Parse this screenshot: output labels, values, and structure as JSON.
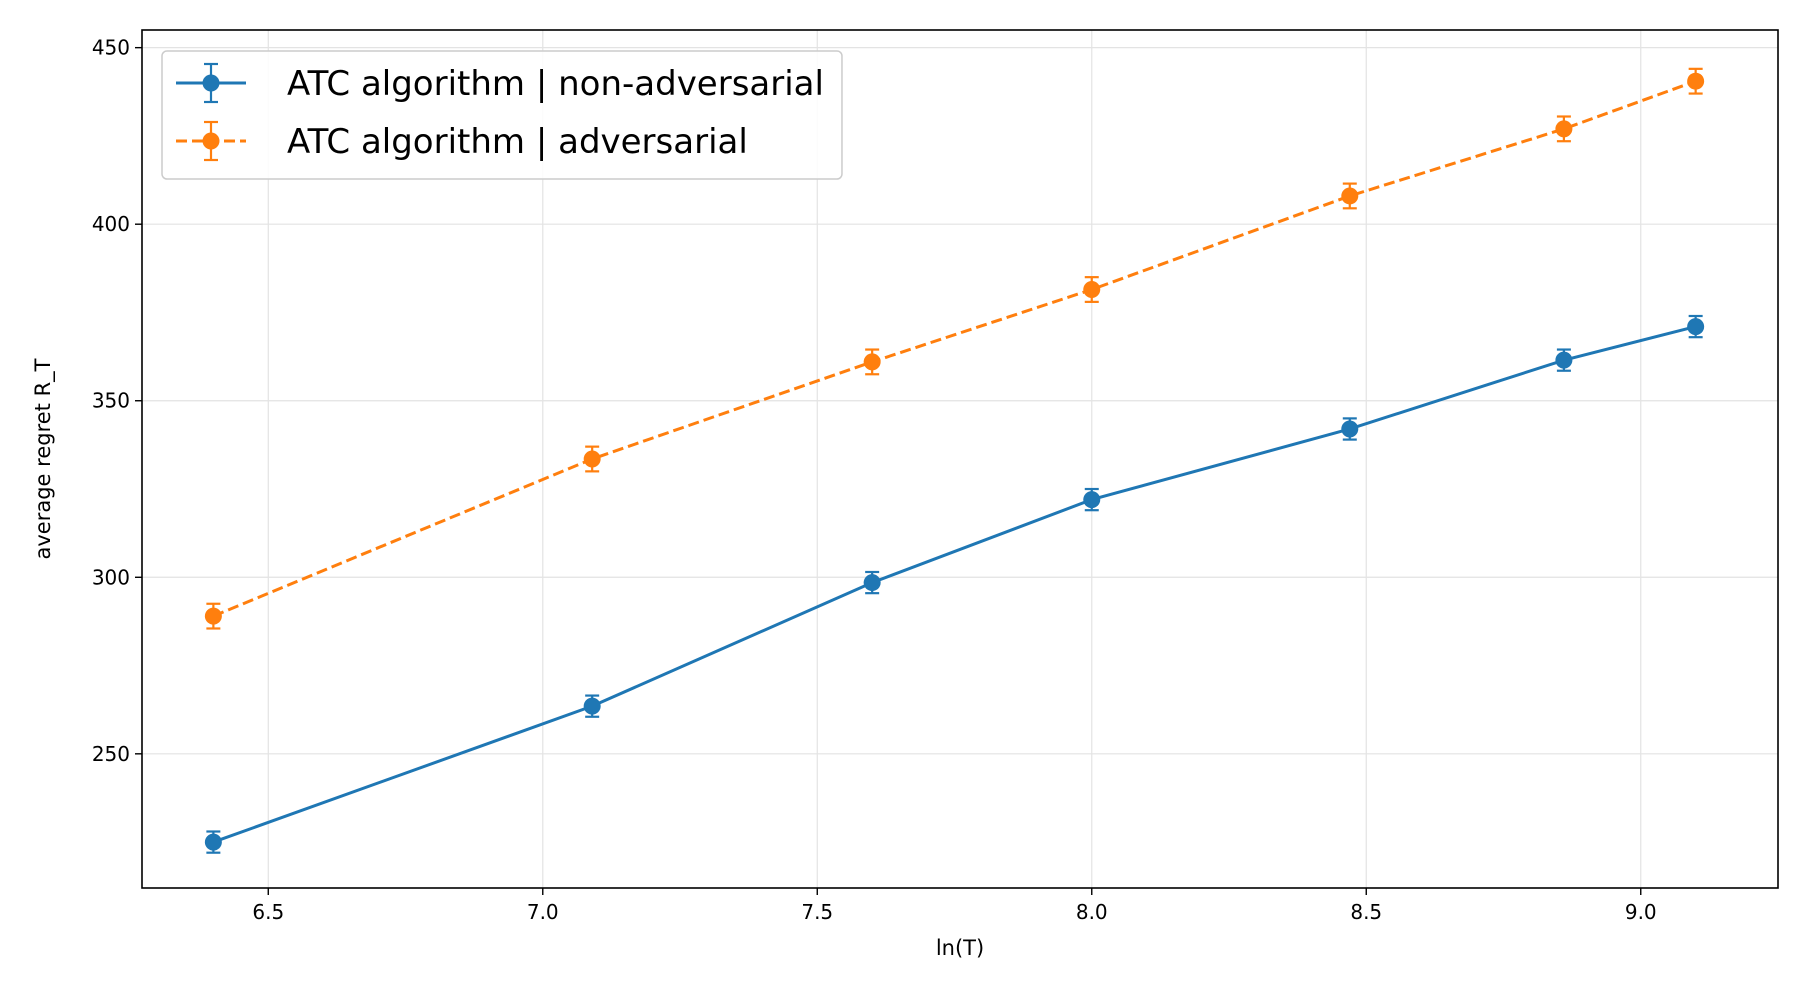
{
  "chart_data": {
    "type": "line",
    "title": "",
    "xlabel": "ln(T)",
    "ylabel": "average regret  R_T",
    "xlim": [
      6.27,
      9.25
    ],
    "ylim": [
      212,
      455
    ],
    "xticks": [
      6.5,
      7.0,
      7.5,
      8.0,
      8.5,
      9.0
    ],
    "xtick_labels": [
      "6.5",
      "7.0",
      "7.5",
      "8.0",
      "8.5",
      "9.0"
    ],
    "yticks": [
      250,
      300,
      350,
      400,
      450
    ],
    "ytick_labels": [
      "250",
      "300",
      "350",
      "400",
      "450"
    ],
    "grid": true,
    "legend_position": "top-left",
    "series": [
      {
        "name": "ATC algorithm | non-adversarial",
        "color": "#1f77b4",
        "linestyle": "solid",
        "x": [
          6.4,
          7.09,
          7.6,
          8.0,
          8.47,
          8.86,
          9.1
        ],
        "y": [
          225,
          263.5,
          298.5,
          322,
          342,
          361.5,
          371
        ],
        "err": [
          3,
          3,
          3,
          3,
          3,
          3,
          3
        ]
      },
      {
        "name": "ATC algorithm | adversarial",
        "color": "#ff7f0e",
        "linestyle": "dashed",
        "x": [
          6.4,
          7.09,
          7.6,
          8.0,
          8.47,
          8.86,
          9.1
        ],
        "y": [
          289,
          333.5,
          361,
          381.5,
          408,
          427,
          440.5
        ],
        "err": [
          3.5,
          3.5,
          3.5,
          3.5,
          3.5,
          3.5,
          3.5
        ]
      }
    ]
  }
}
